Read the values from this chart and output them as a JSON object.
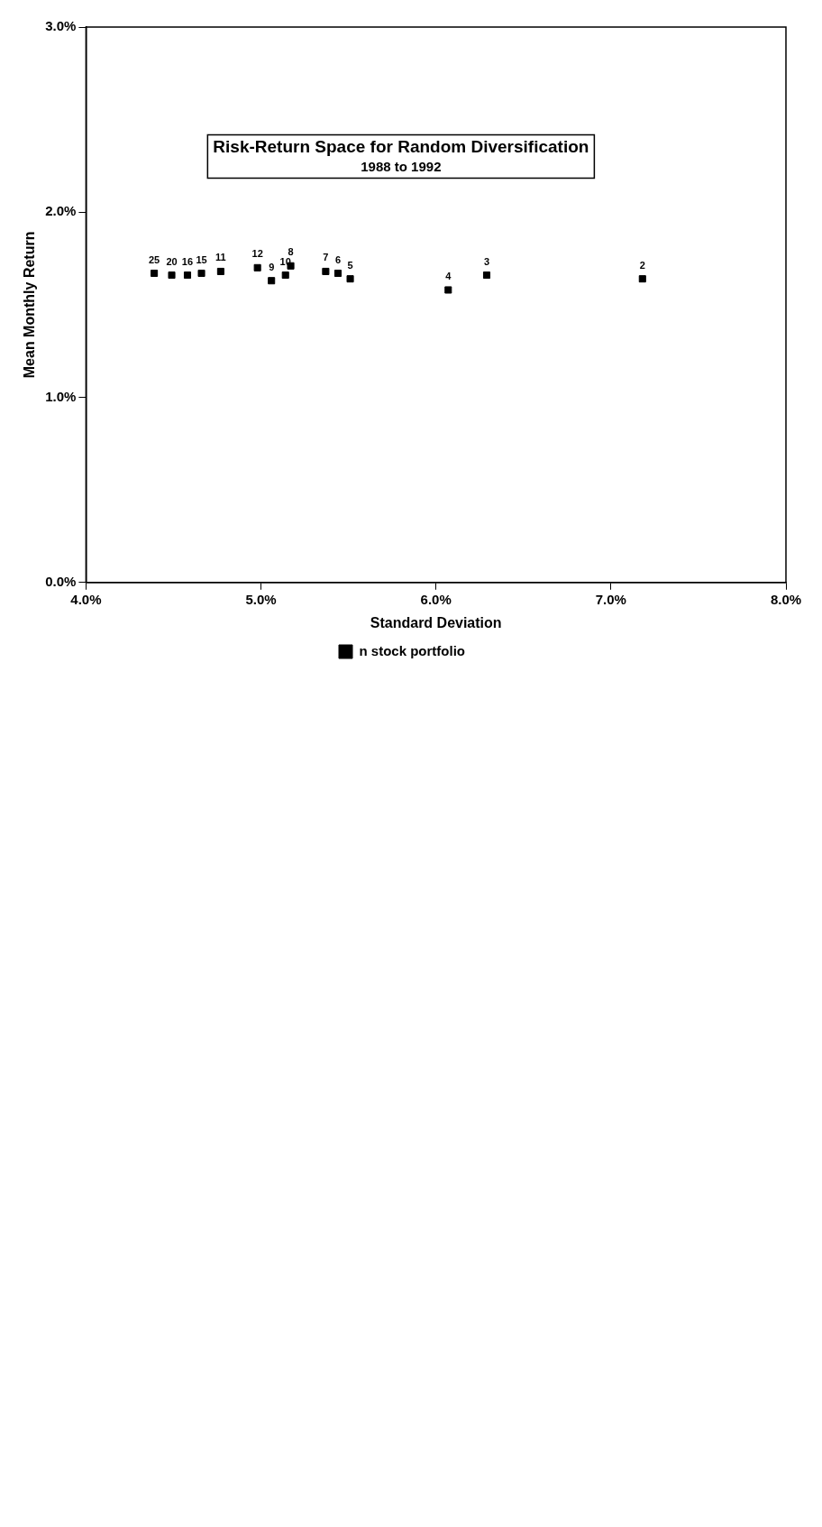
{
  "chart_data": {
    "type": "scatter",
    "title": "Risk-Return Space for Random Diversification",
    "subtitle": "1988 to 1992",
    "xlabel": "Standard Deviation",
    "ylabel": "Mean Monthly Return",
    "xlim": [
      4,
      8
    ],
    "xticks": [
      {
        "value": 4,
        "label": "4.0%"
      },
      {
        "value": 5,
        "label": "5.0%"
      },
      {
        "value": 6,
        "label": "6.0%"
      },
      {
        "value": 7,
        "label": "7.0%"
      },
      {
        "value": 8,
        "label": "8.0%"
      }
    ],
    "ylim": [
      0,
      3
    ],
    "yticks": [
      {
        "value": 0,
        "label": "0.0%"
      },
      {
        "value": 1,
        "label": "1.0%"
      },
      {
        "value": 2,
        "label": "2.0%"
      },
      {
        "value": 3,
        "label": "3.0%"
      }
    ],
    "series": [
      {
        "name": "n stock portfolio",
        "color": "#000000",
        "x": [
          7.18,
          6.29,
          6.07,
          5.51,
          5.44,
          5.37,
          5.17,
          5.14,
          5.06,
          4.98,
          4.77,
          4.66,
          4.58,
          4.49,
          4.39
        ],
        "values": [
          1.64,
          1.66,
          1.58,
          1.64,
          1.67,
          1.68,
          1.71,
          1.66,
          1.63,
          1.7,
          1.68,
          1.67,
          1.66,
          1.66,
          1.67
        ]
      }
    ],
    "annotations": [
      {
        "text": "2",
        "x": 7.18,
        "y": 1.64
      },
      {
        "text": "3",
        "x": 6.29,
        "y": 1.66
      },
      {
        "text": "4",
        "x": 6.07,
        "y": 1.58
      },
      {
        "text": "5",
        "x": 5.51,
        "y": 1.64
      },
      {
        "text": "6",
        "x": 5.44,
        "y": 1.67
      },
      {
        "text": "7",
        "x": 5.37,
        "y": 1.68
      },
      {
        "text": "8",
        "x": 5.17,
        "y": 1.71
      },
      {
        "text": "10",
        "x": 5.14,
        "y": 1.66
      },
      {
        "text": "9",
        "x": 5.06,
        "y": 1.63
      },
      {
        "text": "12",
        "x": 4.98,
        "y": 1.7
      },
      {
        "text": "11",
        "x": 4.77,
        "y": 1.68
      },
      {
        "text": "15",
        "x": 4.66,
        "y": 1.67
      },
      {
        "text": "16",
        "x": 4.58,
        "y": 1.66
      },
      {
        "text": "20",
        "x": 4.49,
        "y": 1.66
      },
      {
        "text": "25",
        "x": 4.39,
        "y": 1.67
      }
    ],
    "marker": "square",
    "legend": "bottom",
    "grid": false
  }
}
